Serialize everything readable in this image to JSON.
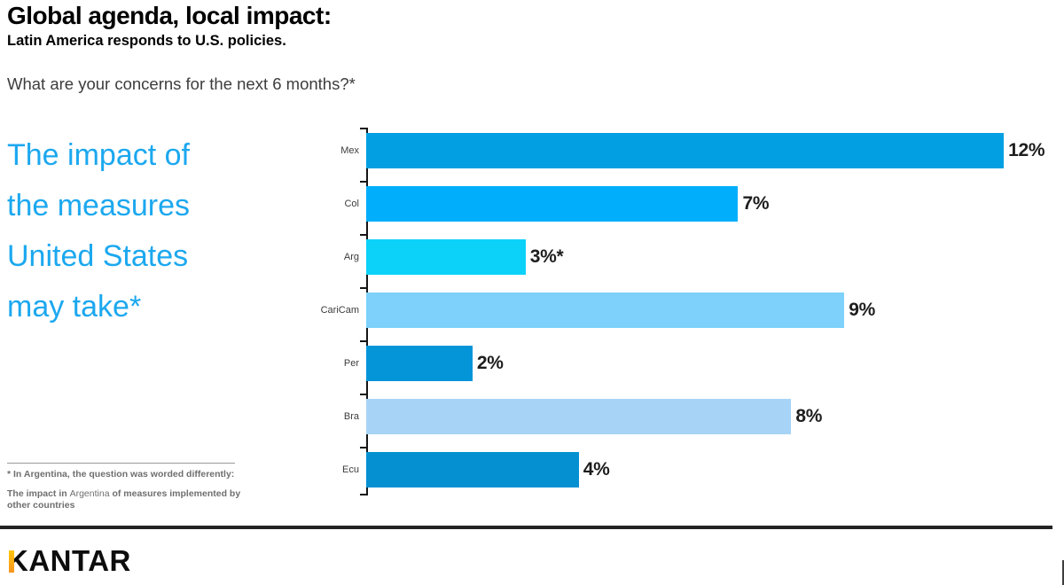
{
  "header": {
    "title": "Global agenda, local impact:",
    "subtitle": "Latin America responds to U.S. policies.",
    "question": "What are your concerns for the next 6 months?*"
  },
  "hero": {
    "lines": [
      "The impact of",
      "the measures",
      "United States",
      "may take*"
    ],
    "color": "#1CA8EF"
  },
  "chart_data": {
    "type": "bar",
    "orientation": "horizontal",
    "title": "",
    "xlabel": "",
    "ylabel": "",
    "grid": false,
    "legend": false,
    "xlim": [
      0,
      13
    ],
    "value_suffix": "%",
    "categories": [
      "Mex",
      "Col",
      "Arg",
      "CariCam",
      "Per",
      "Bra",
      "Ecu"
    ],
    "values": [
      12,
      7,
      3,
      9,
      2,
      8,
      4
    ],
    "value_labels": [
      "12%",
      "7%",
      "3%*",
      "9%",
      "2%",
      "8%",
      "4%"
    ],
    "bar_colors": [
      "#029FE2",
      "#00AEFB",
      "#0CD2F9",
      "#7DD1FA",
      "#0495D9",
      "#A7D4F6",
      "#0490D1"
    ],
    "axis_color": "#151515"
  },
  "footnote": {
    "line1": "* In Argentina, the question was worded differently:",
    "line2_pre": "The impact in ",
    "line2_mid": "Argentina",
    "line2_post": " of measures implemented by other countries"
  },
  "footer": {
    "logo": "KANTAR",
    "logo_accent_color": "#F7A800"
  }
}
